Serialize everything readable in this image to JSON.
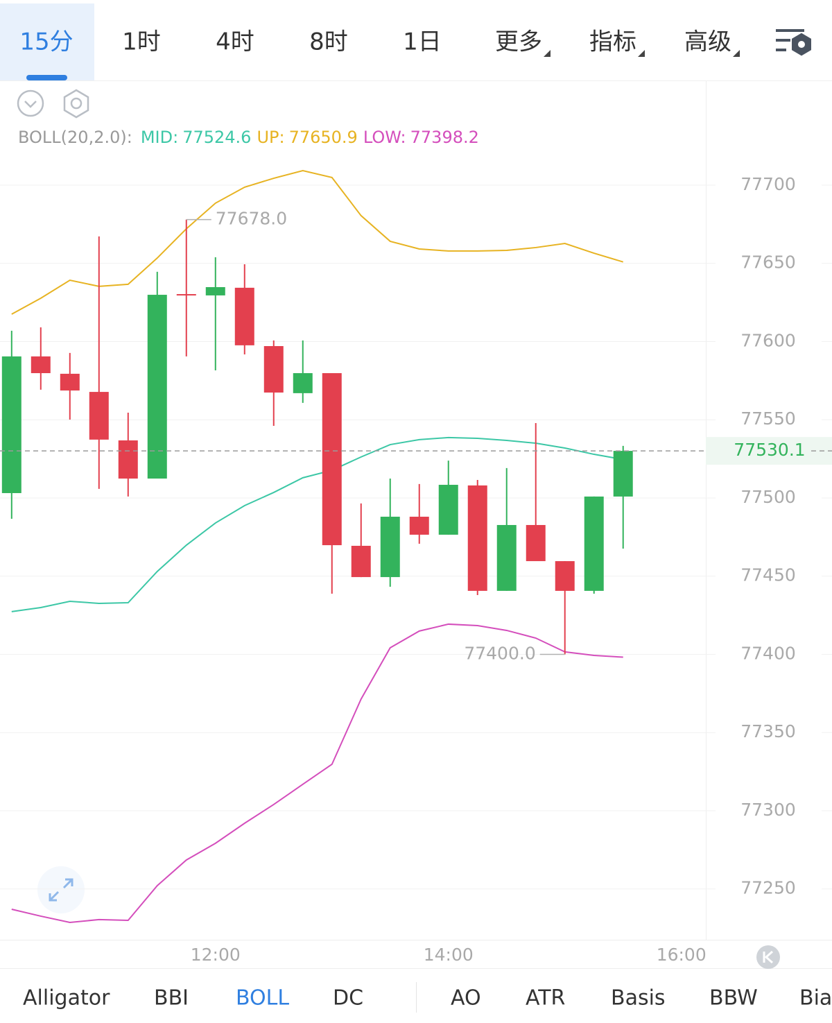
{
  "chart_data": {
    "type": "candlestick",
    "timeframe_tabs": [
      {
        "label": "15分",
        "active": true
      },
      {
        "label": "1时"
      },
      {
        "label": "4时"
      },
      {
        "label": "8时"
      },
      {
        "label": "1日"
      },
      {
        "label": "更多",
        "menu": true
      },
      {
        "label": "指标",
        "menu": true
      },
      {
        "label": "高级",
        "menu": true
      }
    ],
    "indicator_title": "BOLL(20,2.0):",
    "x": [
      10.25,
      10.5,
      10.75,
      11,
      11.25,
      11.5,
      11.75,
      12,
      12.25,
      12.5,
      12.75,
      13,
      13.25,
      13.5,
      13.75,
      14,
      14.25,
      14.5,
      14.75,
      15,
      15.25,
      15.5
    ],
    "xlim": [
      10.15,
      16.21
    ],
    "xticks": [
      {
        "value": 12,
        "label": "12:00"
      },
      {
        "value": 14,
        "label": "14:00"
      },
      {
        "value": 16,
        "label": "16:00"
      }
    ],
    "ylim": [
      77217.5,
      77766.5
    ],
    "yticks": [
      77250,
      77300,
      77350,
      77400,
      77450,
      77500,
      77550,
      77600,
      77650,
      77700
    ],
    "grid": true,
    "up_color": "#33b35c",
    "down_color": "#e3404e",
    "open": [
      77503.1,
      77590.5,
      77579.4,
      77567.8,
      77536.8,
      77512.4,
      77629.9,
      77629.5,
      77634.4,
      77597.1,
      77567.0,
      77579.8,
      77469.4,
      77449.4,
      77488.0,
      77476.5,
      77508.0,
      77440.6,
      77482.7,
      77459.6,
      77440.6,
      77500.9
    ],
    "high": [
      77606.9,
      77609.1,
      77592.7,
      77667.2,
      77554.5,
      77644.6,
      77678.0,
      77653.9,
      77649.4,
      77600.7,
      77600.7,
      77579.8,
      77496.5,
      77512.4,
      77508.9,
      77523.9,
      77511.5,
      77519.1,
      77547.9,
      77459.6,
      77500.9,
      77533.3
    ],
    "low": [
      77486.7,
      77569.2,
      77550.1,
      77505.8,
      77500.9,
      77512.4,
      77590.5,
      77581.6,
      77591.8,
      77546.1,
      77560.8,
      77438.8,
      77449.4,
      77443.2,
      77470.7,
      77476.5,
      77437.9,
      77440.6,
      77459.6,
      77400.0,
      77438.8,
      77467.6
    ],
    "close": [
      77590.5,
      77579.8,
      77568.7,
      77537.3,
      77512.4,
      77629.9,
      77629.9,
      77634.8,
      77597.6,
      77567.4,
      77579.8,
      77469.8,
      77449.4,
      77488.0,
      77476.5,
      77508.4,
      77440.6,
      77482.7,
      77459.6,
      77440.6,
      77500.9,
      77530.1
    ],
    "series": [
      {
        "name": "MID:",
        "color": "#3cc7a6",
        "values": [
          77427.3,
          77429.9,
          77433.9,
          77432.6,
          77433.0,
          77453.0,
          77469.8,
          77484.0,
          77495.1,
          77503.5,
          77512.9,
          77517.7,
          77526.2,
          77534.1,
          77537.3,
          77538.6,
          77538.1,
          77536.8,
          77535.0,
          77531.9,
          77527.9,
          77524.6
        ]
      },
      {
        "name": "UP:",
        "color": "#e7b322",
        "values": [
          77617.5,
          77627.7,
          77639.2,
          77635.3,
          77636.6,
          77653.4,
          77672.1,
          77688.5,
          77698.7,
          77704.4,
          77709.3,
          77704.9,
          77680.5,
          77664.1,
          77659.2,
          77657.9,
          77657.9,
          77658.3,
          77660.1,
          77662.7,
          77656.5,
          77650.9
        ]
      },
      {
        "name": "LOW:",
        "color": "#d44ebc",
        "values": [
          77237.0,
          77232.6,
          77228.6,
          77230.4,
          77229.9,
          77252.1,
          77268.5,
          77279.2,
          77292.0,
          77304.0,
          77316.9,
          77329.7,
          77371.4,
          77404.2,
          77414.9,
          77419.3,
          77418.4,
          77415.3,
          77410.4,
          77401.6,
          77399.3,
          77398.2
        ]
      }
    ],
    "last_price": 77530.1,
    "annotations": [
      {
        "x": 11.75,
        "y": 77678.0,
        "label": "77678.0",
        "side": "right"
      },
      {
        "x": 15,
        "y": 77400.0,
        "label": "77400.0",
        "side": "left"
      }
    ],
    "indicator_tabs": [
      {
        "label": "Alligator"
      },
      {
        "label": "BBI"
      },
      {
        "label": "BOLL",
        "active": true
      },
      {
        "label": "DC"
      },
      {
        "label": "AO"
      },
      {
        "label": "ATR"
      },
      {
        "label": "Basis"
      },
      {
        "label": "BBW"
      },
      {
        "label": "Bias"
      }
    ]
  }
}
